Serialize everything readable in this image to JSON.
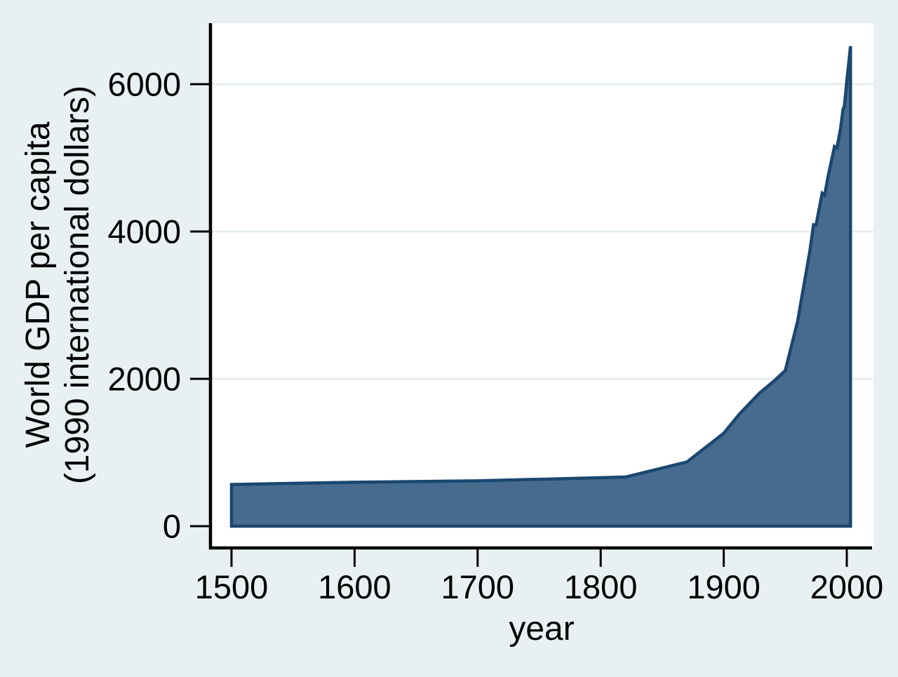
{
  "chart_data": {
    "type": "area",
    "title": "",
    "xlabel": "year",
    "ylabel": "World GDP per capita (1990 international dollars)",
    "ylabel_lines": [
      "World GDP per capita",
      "(1990 international dollars)"
    ],
    "x_ticks": [
      "1500",
      "1600",
      "1700",
      "1800",
      "1900",
      "2000"
    ],
    "y_ticks": [
      "0",
      "2000",
      "4000",
      "6000"
    ],
    "xlim": [
      1483,
      2022
    ],
    "ylim": [
      0,
      6860
    ],
    "grid": true,
    "legend": "none",
    "series": [
      {
        "name": "World GDP per capita (1990 international dollars)",
        "points": [
          [
            1500,
            566
          ],
          [
            1600,
            596
          ],
          [
            1700,
            615
          ],
          [
            1820,
            667
          ],
          [
            1870,
            870
          ],
          [
            1900,
            1261
          ],
          [
            1913,
            1526
          ],
          [
            1929,
            1806
          ],
          [
            1940,
            1958
          ],
          [
            1950,
            2111
          ],
          [
            1960,
            2777
          ],
          [
            1970,
            3736
          ],
          [
            1973,
            4091
          ],
          [
            1975,
            4088
          ],
          [
            1980,
            4520
          ],
          [
            1982,
            4494
          ],
          [
            1985,
            4764
          ],
          [
            1990,
            5154
          ],
          [
            1992,
            5135
          ],
          [
            1995,
            5404
          ],
          [
            1997,
            5661
          ],
          [
            1998,
            5696
          ],
          [
            2000,
            6038
          ],
          [
            2003,
            6516
          ]
        ]
      }
    ],
    "colors": {
      "background": "#e9f0f2",
      "plot_background": "#ffffff",
      "gridline": "#e2ebf0",
      "area_fill": "#476b8e",
      "area_stroke": "#1a476f",
      "axis": "#000000",
      "text": "#000000"
    }
  }
}
